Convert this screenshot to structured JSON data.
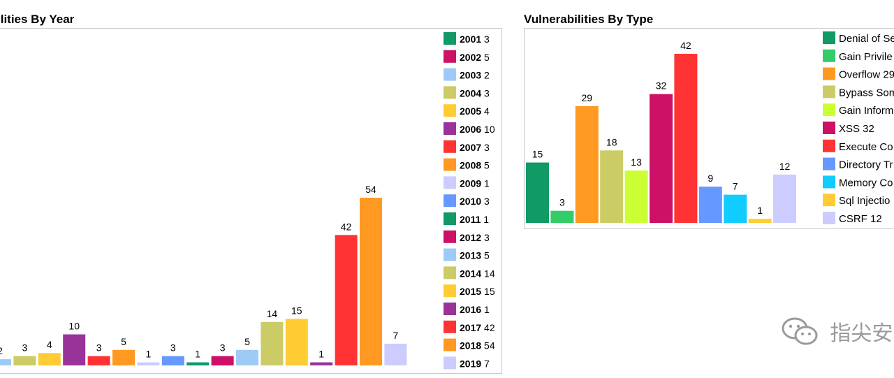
{
  "chart_data": [
    {
      "type": "bar",
      "title": "ilities By Year",
      "categories": [
        "2003",
        "2004",
        "2005",
        "2006",
        "2007",
        "2008",
        "2009",
        "2010",
        "2011",
        "2012",
        "2013",
        "2014",
        "2015",
        "2016",
        "2017",
        "2018",
        "2019"
      ],
      "values": [
        2,
        3,
        4,
        10,
        3,
        5,
        1,
        3,
        1,
        3,
        5,
        14,
        15,
        1,
        42,
        54,
        7
      ],
      "colors": [
        "#9ecbf5",
        "#cccc66",
        "#ffcc33",
        "#993399",
        "#ff3333",
        "#ff9922",
        "#ccccff",
        "#6699ff",
        "#119966",
        "#cc1166",
        "#9ecbf5",
        "#cccc66",
        "#ffcc33",
        "#993399",
        "#ff3333",
        "#ff9922",
        "#ccccff"
      ],
      "legend": [
        {
          "year": "2001",
          "count": "3",
          "color": "#119966"
        },
        {
          "year": "2002",
          "count": "5",
          "color": "#cc1166"
        },
        {
          "year": "2003",
          "count": "2",
          "color": "#9ecbf5"
        },
        {
          "year": "2004",
          "count": "3",
          "color": "#cccc66"
        },
        {
          "year": "2005",
          "count": "4",
          "color": "#ffcc33"
        },
        {
          "year": "2006",
          "count": "10",
          "color": "#993399"
        },
        {
          "year": "2007",
          "count": "3",
          "color": "#ff3333"
        },
        {
          "year": "2008",
          "count": "5",
          "color": "#ff9922"
        },
        {
          "year": "2009",
          "count": "1",
          "color": "#ccccff"
        },
        {
          "year": "2010",
          "count": "3",
          "color": "#6699ff"
        },
        {
          "year": "2011",
          "count": "1",
          "color": "#119966"
        },
        {
          "year": "2012",
          "count": "3",
          "color": "#cc1166"
        },
        {
          "year": "2013",
          "count": "5",
          "color": "#9ecbf5"
        },
        {
          "year": "2014",
          "count": "14",
          "color": "#cccc66"
        },
        {
          "year": "2015",
          "count": "15",
          "color": "#ffcc33"
        },
        {
          "year": "2016",
          "count": "1",
          "color": "#993399"
        },
        {
          "year": "2017",
          "count": "42",
          "color": "#ff3333"
        },
        {
          "year": "2018",
          "count": "54",
          "color": "#ff9922"
        },
        {
          "year": "2019",
          "count": "7",
          "color": "#ccccff"
        }
      ],
      "legend_position": "right"
    },
    {
      "type": "bar",
      "title": "Vulnerabilities By Type",
      "values": [
        15,
        3,
        29,
        18,
        13,
        32,
        42,
        9,
        7,
        1,
        12
      ],
      "colors": [
        "#119966",
        "#33cc66",
        "#ff9922",
        "#cccc66",
        "#ccff33",
        "#cc1166",
        "#ff3333",
        "#6699ff",
        "#11ccff",
        "#ffcc33",
        "#ccccff"
      ],
      "legend": [
        {
          "label": "Denial of Se",
          "color": "#119966"
        },
        {
          "label": "Gain Privile",
          "color": "#33cc66"
        },
        {
          "label": "Overflow 29",
          "color": "#ff9922"
        },
        {
          "label": "Bypass Som",
          "color": "#cccc66"
        },
        {
          "label": "Gain Inform",
          "color": "#ccff33"
        },
        {
          "label": "XSS 32",
          "color": "#cc1166"
        },
        {
          "label": "Execute Co",
          "color": "#ff3333"
        },
        {
          "label": "Directory Tr",
          "color": "#6699ff"
        },
        {
          "label": "Memory Co",
          "color": "#11ccff"
        },
        {
          "label": "Sql Injectio",
          "color": "#ffcc33"
        },
        {
          "label": "CSRF 12",
          "color": "#ccccff"
        }
      ],
      "legend_position": "right"
    }
  ],
  "watermark": {
    "text": "指尖安",
    "icon": "wechat-icon"
  }
}
